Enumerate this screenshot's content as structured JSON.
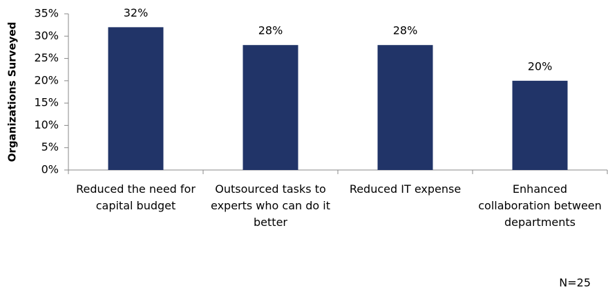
{
  "chart_data": {
    "type": "bar",
    "y_label": "Organizations Surveyed",
    "categories": [
      "Reduced the need for capital budget",
      "Outsourced tasks to experts who can do it better",
      "Reduced IT expense",
      "Enhanced collaboration between departments"
    ],
    "values": [
      32,
      28,
      28,
      20
    ],
    "value_labels": [
      "32%",
      "28%",
      "28%",
      "20%"
    ],
    "color": "#213468",
    "ylim": [
      0,
      35
    ],
    "yticks": [
      {
        "value": 0,
        "label": "0%"
      },
      {
        "value": 5,
        "label": "5%"
      },
      {
        "value": 10,
        "label": "10%"
      },
      {
        "value": 15,
        "label": "15%"
      },
      {
        "value": 20,
        "label": "20%"
      },
      {
        "value": 25,
        "label": "25%"
      },
      {
        "value": 30,
        "label": "30%"
      },
      {
        "value": 35,
        "label": "35%"
      }
    ],
    "grid": false,
    "annotation": "N=25"
  }
}
